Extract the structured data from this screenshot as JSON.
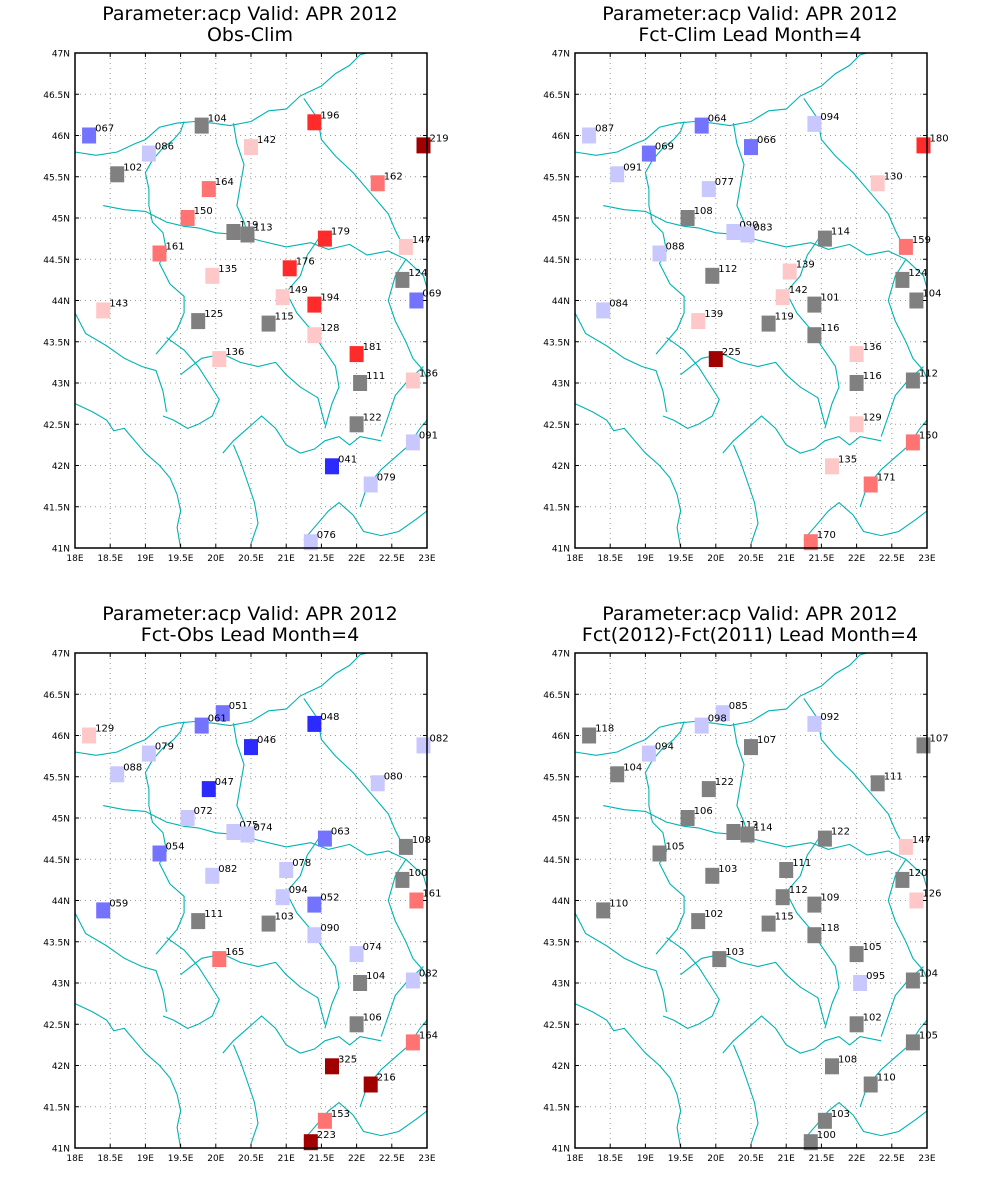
{
  "axes": {
    "lon_labels": [
      "18E",
      "18.5E",
      "19E",
      "19.5E",
      "20E",
      "20.5E",
      "21E",
      "21.5E",
      "22E",
      "22.5E",
      "23E"
    ],
    "lat_labels": [
      "41N",
      "41.5N",
      "42N",
      "42.5N",
      "43N",
      "43.5N",
      "44N",
      "44.5N",
      "45N",
      "45.5N",
      "46N",
      "46.5N",
      "47N"
    ],
    "lon_range": [
      18,
      23
    ],
    "lat_range": [
      41,
      47
    ]
  },
  "colors": {
    "coast": "#00b3b3",
    "grid": "#9a9a9a",
    "neutral": "#808080",
    "scale": [
      "#2b2bff",
      "#7373ff",
      "#c8c8ff",
      "#808080",
      "#ffc8c8",
      "#ff7373",
      "#ff2b2b",
      "#a00000"
    ]
  },
  "panels": [
    {
      "title1": "Parameter:acp Valid: APR 2012",
      "title2": "Obs-Clim",
      "stations": [
        {
          "lon": 18.2,
          "lat": 46.0,
          "v": 67,
          "t": "067"
        },
        {
          "lon": 19.05,
          "lat": 45.78,
          "v": 86,
          "t": "086"
        },
        {
          "lon": 19.8,
          "lat": 46.12,
          "v": 104,
          "t": "104"
        },
        {
          "lon": 18.6,
          "lat": 45.53,
          "v": 102,
          "t": "102"
        },
        {
          "lon": 20.5,
          "lat": 45.86,
          "v": 142,
          "t": "142"
        },
        {
          "lon": 21.4,
          "lat": 46.16,
          "v": 196,
          "t": "196"
        },
        {
          "lon": 22.95,
          "lat": 45.88,
          "v": 219,
          "t": "219"
        },
        {
          "lon": 19.9,
          "lat": 45.35,
          "v": 164,
          "t": "164"
        },
        {
          "lon": 22.3,
          "lat": 45.42,
          "v": 162,
          "t": "162"
        },
        {
          "lon": 19.6,
          "lat": 45.0,
          "v": 150,
          "t": "150"
        },
        {
          "lon": 20.25,
          "lat": 44.83,
          "v": 119,
          "t": "119"
        },
        {
          "lon": 20.45,
          "lat": 44.8,
          "v": 113,
          "t": "113"
        },
        {
          "lon": 21.55,
          "lat": 44.75,
          "v": 179,
          "t": "179"
        },
        {
          "lon": 22.7,
          "lat": 44.65,
          "v": 147,
          "t": "147"
        },
        {
          "lon": 19.2,
          "lat": 44.57,
          "v": 161,
          "t": "161"
        },
        {
          "lon": 19.95,
          "lat": 44.3,
          "v": 135,
          "t": "135"
        },
        {
          "lon": 21.05,
          "lat": 44.39,
          "v": 176,
          "t": "176"
        },
        {
          "lon": 22.65,
          "lat": 44.25,
          "v": 124,
          "t": "124"
        },
        {
          "lon": 20.95,
          "lat": 44.04,
          "v": 149,
          "t": "149"
        },
        {
          "lon": 21.4,
          "lat": 43.95,
          "v": 194,
          "t": "194"
        },
        {
          "lon": 22.85,
          "lat": 44.0,
          "v": 69,
          "t": "069"
        },
        {
          "lon": 18.4,
          "lat": 43.88,
          "v": 143,
          "t": "143"
        },
        {
          "lon": 19.75,
          "lat": 43.75,
          "v": 125,
          "t": "125"
        },
        {
          "lon": 20.75,
          "lat": 43.72,
          "v": 115,
          "t": "115"
        },
        {
          "lon": 21.4,
          "lat": 43.58,
          "v": 128,
          "t": "128"
        },
        {
          "lon": 22.0,
          "lat": 43.35,
          "v": 181,
          "t": "181"
        },
        {
          "lon": 20.05,
          "lat": 43.29,
          "v": 136,
          "t": "136"
        },
        {
          "lon": 22.05,
          "lat": 43.0,
          "v": 111,
          "t": "111"
        },
        {
          "lon": 22.8,
          "lat": 43.03,
          "v": 136,
          "t": "136"
        },
        {
          "lon": 22.0,
          "lat": 42.5,
          "v": 122,
          "t": "122"
        },
        {
          "lon": 22.8,
          "lat": 42.28,
          "v": 91,
          "t": "091"
        },
        {
          "lon": 21.65,
          "lat": 41.99,
          "v": 41,
          "t": "041"
        },
        {
          "lon": 22.2,
          "lat": 41.77,
          "v": 79,
          "t": "079"
        },
        {
          "lon": 21.35,
          "lat": 41.07,
          "v": 76,
          "t": "076"
        }
      ]
    },
    {
      "title1": "Parameter:acp Valid: APR 2012",
      "title2": "Fct-Clim Lead Month=4",
      "stations": [
        {
          "lon": 18.2,
          "lat": 46.0,
          "v": 87,
          "t": "087"
        },
        {
          "lon": 19.8,
          "lat": 46.12,
          "v": 64,
          "t": "064"
        },
        {
          "lon": 21.4,
          "lat": 46.14,
          "v": 94,
          "t": "094"
        },
        {
          "lon": 22.95,
          "lat": 45.88,
          "v": 180,
          "t": "180"
        },
        {
          "lon": 19.05,
          "lat": 45.78,
          "v": 69,
          "t": "069"
        },
        {
          "lon": 20.5,
          "lat": 45.86,
          "v": 66,
          "t": "066"
        },
        {
          "lon": 18.6,
          "lat": 45.53,
          "v": 91,
          "t": "091"
        },
        {
          "lon": 19.9,
          "lat": 45.35,
          "v": 77,
          "t": "077"
        },
        {
          "lon": 22.3,
          "lat": 45.42,
          "v": 130,
          "t": "130"
        },
        {
          "lon": 19.6,
          "lat": 45.0,
          "v": 108,
          "t": "108"
        },
        {
          "lon": 20.25,
          "lat": 44.83,
          "v": 90,
          "t": "090"
        },
        {
          "lon": 20.45,
          "lat": 44.8,
          "v": 83,
          "t": "083"
        },
        {
          "lon": 21.55,
          "lat": 44.75,
          "v": 114,
          "t": "114"
        },
        {
          "lon": 22.7,
          "lat": 44.65,
          "v": 159,
          "t": "159"
        },
        {
          "lon": 19.2,
          "lat": 44.57,
          "v": 88,
          "t": "088"
        },
        {
          "lon": 19.95,
          "lat": 44.3,
          "v": 112,
          "t": "112"
        },
        {
          "lon": 21.05,
          "lat": 44.35,
          "v": 139,
          "t": "139"
        },
        {
          "lon": 22.65,
          "lat": 44.25,
          "v": 124,
          "t": "124"
        },
        {
          "lon": 22.85,
          "lat": 44.0,
          "v": 104,
          "t": "104"
        },
        {
          "lon": 20.95,
          "lat": 44.04,
          "v": 142,
          "t": "142"
        },
        {
          "lon": 21.4,
          "lat": 43.95,
          "v": 101,
          "t": "101"
        },
        {
          "lon": 18.4,
          "lat": 43.88,
          "v": 84,
          "t": "084"
        },
        {
          "lon": 19.75,
          "lat": 43.75,
          "v": 139,
          "t": "139"
        },
        {
          "lon": 20.75,
          "lat": 43.72,
          "v": 119,
          "t": "119"
        },
        {
          "lon": 21.4,
          "lat": 43.58,
          "v": 116,
          "t": "116"
        },
        {
          "lon": 20.0,
          "lat": 43.29,
          "v": 225,
          "t": "225"
        },
        {
          "lon": 22.0,
          "lat": 43.35,
          "v": 136,
          "t": "136"
        },
        {
          "lon": 22.0,
          "lat": 43.0,
          "v": 116,
          "t": "116"
        },
        {
          "lon": 22.8,
          "lat": 43.03,
          "v": 112,
          "t": "112"
        },
        {
          "lon": 22.0,
          "lat": 42.5,
          "v": 129,
          "t": "129"
        },
        {
          "lon": 22.8,
          "lat": 42.28,
          "v": 150,
          "t": "150"
        },
        {
          "lon": 21.65,
          "lat": 41.99,
          "v": 135,
          "t": "135"
        },
        {
          "lon": 22.2,
          "lat": 41.77,
          "v": 171,
          "t": "171"
        },
        {
          "lon": 21.35,
          "lat": 41.07,
          "v": 170,
          "t": "170"
        }
      ]
    },
    {
      "title1": "Parameter:acp Valid: APR 2012",
      "title2": "Fct-Obs Lead Month=4",
      "stations": [
        {
          "lon": 18.2,
          "lat": 46.0,
          "v": 129,
          "t": "129"
        },
        {
          "lon": 20.1,
          "lat": 46.27,
          "v": 51,
          "t": "051"
        },
        {
          "lon": 19.8,
          "lat": 46.12,
          "v": 61,
          "t": "061"
        },
        {
          "lon": 21.4,
          "lat": 46.14,
          "v": 48,
          "t": "048"
        },
        {
          "lon": 22.95,
          "lat": 45.88,
          "v": 82,
          "t": "082"
        },
        {
          "lon": 19.05,
          "lat": 45.78,
          "v": 79,
          "t": "079"
        },
        {
          "lon": 20.5,
          "lat": 45.86,
          "v": 46,
          "t": "046"
        },
        {
          "lon": 18.6,
          "lat": 45.53,
          "v": 88,
          "t": "088"
        },
        {
          "lon": 22.3,
          "lat": 45.42,
          "v": 80,
          "t": "080"
        },
        {
          "lon": 19.9,
          "lat": 45.35,
          "v": 47,
          "t": "047"
        },
        {
          "lon": 19.6,
          "lat": 45.0,
          "v": 72,
          "t": "072"
        },
        {
          "lon": 20.25,
          "lat": 44.83,
          "v": 75,
          "t": "075"
        },
        {
          "lon": 20.45,
          "lat": 44.8,
          "v": 74,
          "t": "074"
        },
        {
          "lon": 21.55,
          "lat": 44.75,
          "v": 63,
          "t": "063"
        },
        {
          "lon": 22.7,
          "lat": 44.65,
          "v": 108,
          "t": "108"
        },
        {
          "lon": 19.2,
          "lat": 44.57,
          "v": 54,
          "t": "054"
        },
        {
          "lon": 21.0,
          "lat": 44.37,
          "v": 78,
          "t": "078"
        },
        {
          "lon": 19.95,
          "lat": 44.3,
          "v": 82,
          "t": "082"
        },
        {
          "lon": 22.65,
          "lat": 44.25,
          "v": 100,
          "t": "100"
        },
        {
          "lon": 20.95,
          "lat": 44.04,
          "v": 94,
          "t": "094"
        },
        {
          "lon": 22.85,
          "lat": 44.0,
          "v": 161,
          "t": "161"
        },
        {
          "lon": 21.4,
          "lat": 43.95,
          "v": 52,
          "t": "052"
        },
        {
          "lon": 18.4,
          "lat": 43.88,
          "v": 59,
          "t": "059"
        },
        {
          "lon": 19.75,
          "lat": 43.75,
          "v": 111,
          "t": "111"
        },
        {
          "lon": 20.75,
          "lat": 43.72,
          "v": 103,
          "t": "103"
        },
        {
          "lon": 21.4,
          "lat": 43.58,
          "v": 90,
          "t": "090"
        },
        {
          "lon": 22.0,
          "lat": 43.35,
          "v": 74,
          "t": "074"
        },
        {
          "lon": 20.05,
          "lat": 43.29,
          "v": 165,
          "t": "165"
        },
        {
          "lon": 22.05,
          "lat": 43.0,
          "v": 104,
          "t": "104"
        },
        {
          "lon": 22.8,
          "lat": 43.03,
          "v": 82,
          "t": "082"
        },
        {
          "lon": 22.0,
          "lat": 42.5,
          "v": 106,
          "t": "106"
        },
        {
          "lon": 22.8,
          "lat": 42.28,
          "v": 164,
          "t": "164"
        },
        {
          "lon": 21.65,
          "lat": 41.99,
          "v": 325,
          "t": "325"
        },
        {
          "lon": 22.2,
          "lat": 41.77,
          "v": 216,
          "t": "216"
        },
        {
          "lon": 21.55,
          "lat": 41.33,
          "v": 153,
          "t": "153"
        },
        {
          "lon": 21.35,
          "lat": 41.07,
          "v": 223,
          "t": "223"
        }
      ]
    },
    {
      "title1": "Parameter:acp Valid: APR 2012",
      "title2": "Fct(2012)-Fct(2011) Lead Month=4",
      "stations": [
        {
          "lon": 18.2,
          "lat": 46.0,
          "v": 118,
          "t": "118"
        },
        {
          "lon": 20.1,
          "lat": 46.27,
          "v": 85,
          "t": "085"
        },
        {
          "lon": 19.8,
          "lat": 46.12,
          "v": 98,
          "t": "098"
        },
        {
          "lon": 21.4,
          "lat": 46.14,
          "v": 92,
          "t": "092"
        },
        {
          "lon": 22.95,
          "lat": 45.88,
          "v": 107,
          "t": "107"
        },
        {
          "lon": 19.05,
          "lat": 45.78,
          "v": 94,
          "t": "094"
        },
        {
          "lon": 20.5,
          "lat": 45.86,
          "v": 107,
          "t": "107"
        },
        {
          "lon": 18.6,
          "lat": 45.53,
          "v": 104,
          "t": "104"
        },
        {
          "lon": 22.3,
          "lat": 45.42,
          "v": 111,
          "t": "111"
        },
        {
          "lon": 19.9,
          "lat": 45.35,
          "v": 122,
          "t": "122"
        },
        {
          "lon": 19.6,
          "lat": 45.0,
          "v": 106,
          "t": "106"
        },
        {
          "lon": 20.25,
          "lat": 44.83,
          "v": 112,
          "t": "112"
        },
        {
          "lon": 20.45,
          "lat": 44.8,
          "v": 114,
          "t": "114"
        },
        {
          "lon": 21.55,
          "lat": 44.75,
          "v": 122,
          "t": "122"
        },
        {
          "lon": 22.7,
          "lat": 44.65,
          "v": 147,
          "t": "147"
        },
        {
          "lon": 19.2,
          "lat": 44.57,
          "v": 105,
          "t": "105"
        },
        {
          "lon": 21.0,
          "lat": 44.37,
          "v": 111,
          "t": "111"
        },
        {
          "lon": 19.95,
          "lat": 44.3,
          "v": 103,
          "t": "103"
        },
        {
          "lon": 22.65,
          "lat": 44.25,
          "v": 120,
          "t": "120"
        },
        {
          "lon": 20.95,
          "lat": 44.04,
          "v": 112,
          "t": "112"
        },
        {
          "lon": 22.85,
          "lat": 44.0,
          "v": 126,
          "t": "126"
        },
        {
          "lon": 21.4,
          "lat": 43.95,
          "v": 109,
          "t": "109"
        },
        {
          "lon": 18.4,
          "lat": 43.88,
          "v": 110,
          "t": "110"
        },
        {
          "lon": 19.75,
          "lat": 43.75,
          "v": 102,
          "t": "102"
        },
        {
          "lon": 20.75,
          "lat": 43.72,
          "v": 115,
          "t": "115"
        },
        {
          "lon": 21.4,
          "lat": 43.58,
          "v": 118,
          "t": "118"
        },
        {
          "lon": 22.0,
          "lat": 43.35,
          "v": 105,
          "t": "105"
        },
        {
          "lon": 20.05,
          "lat": 43.29,
          "v": 103,
          "t": "103"
        },
        {
          "lon": 22.05,
          "lat": 43.0,
          "v": 95,
          "t": "095"
        },
        {
          "lon": 22.8,
          "lat": 43.03,
          "v": 104,
          "t": "104"
        },
        {
          "lon": 22.0,
          "lat": 42.5,
          "v": 102,
          "t": "102"
        },
        {
          "lon": 22.8,
          "lat": 42.28,
          "v": 105,
          "t": "105"
        },
        {
          "lon": 21.65,
          "lat": 41.99,
          "v": 108,
          "t": "108"
        },
        {
          "lon": 22.2,
          "lat": 41.77,
          "v": 110,
          "t": "110"
        },
        {
          "lon": 21.55,
          "lat": 41.33,
          "v": 103,
          "t": "103"
        },
        {
          "lon": 21.35,
          "lat": 41.07,
          "v": 100,
          "t": "100"
        }
      ]
    }
  ]
}
